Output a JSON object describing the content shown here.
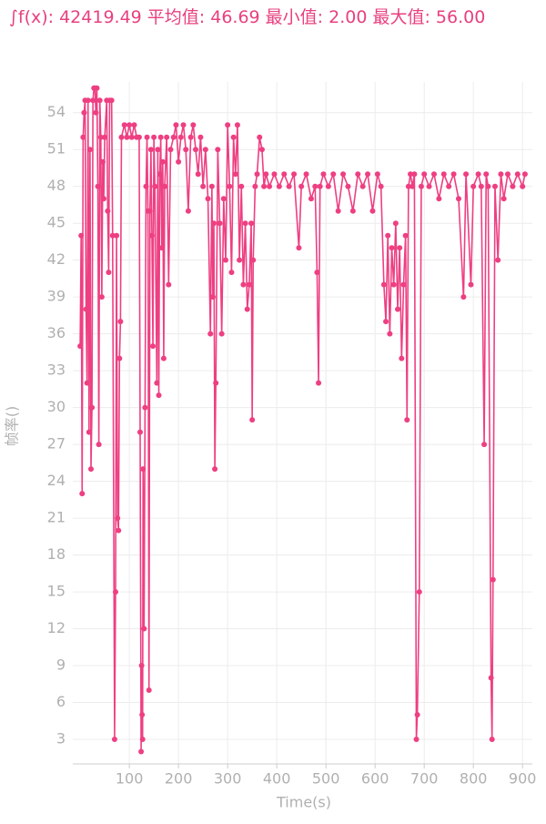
{
  "chart_data": {
    "type": "line",
    "title": "∫f(x): 42419.49 平均值: 46.69 最小值: 2.00 最大值: 56.00",
    "xlabel": "Time(s)",
    "ylabel": "帧率()",
    "color": "#ee3f82",
    "grid": true,
    "xlim": [
      -15,
      920
    ],
    "xticks": [
      100,
      200,
      300,
      400,
      500,
      600,
      700,
      800,
      900
    ],
    "ylim": [
      1,
      56.5
    ],
    "yticks": [
      3,
      6,
      9,
      12,
      15,
      18,
      21,
      24,
      27,
      30,
      33,
      36,
      39,
      42,
      45,
      48,
      51,
      54
    ],
    "x": [
      0,
      2,
      4,
      6,
      8,
      10,
      12,
      14,
      16,
      18,
      20,
      22,
      24,
      26,
      28,
      30,
      32,
      34,
      36,
      38,
      40,
      42,
      44,
      46,
      48,
      50,
      54,
      56,
      58,
      60,
      64,
      66,
      70,
      72,
      74,
      76,
      78,
      80,
      82,
      84,
      90,
      95,
      100,
      105,
      110,
      115,
      120,
      122,
      124,
      125,
      126,
      127,
      128,
      130,
      132,
      134,
      136,
      138,
      140,
      142,
      144,
      146,
      148,
      150,
      152,
      156,
      158,
      160,
      162,
      164,
      166,
      168,
      170,
      172,
      176,
      180,
      184,
      190,
      195,
      200,
      205,
      210,
      215,
      220,
      225,
      230,
      235,
      240,
      245,
      250,
      255,
      260,
      265,
      268,
      270,
      272,
      274,
      276,
      280,
      284,
      288,
      292,
      296,
      300,
      304,
      308,
      312,
      316,
      320,
      324,
      328,
      332,
      336,
      340,
      344,
      348,
      350,
      352,
      356,
      360,
      365,
      370,
      374,
      378,
      385,
      395,
      405,
      415,
      425,
      435,
      445,
      450,
      460,
      470,
      478,
      482,
      485,
      488,
      495,
      505,
      515,
      525,
      535,
      545,
      555,
      565,
      575,
      585,
      595,
      605,
      612,
      618,
      622,
      626,
      630,
      634,
      638,
      642,
      646,
      650,
      654,
      658,
      662,
      665,
      668,
      672,
      676,
      680,
      684,
      686,
      690,
      694,
      700,
      710,
      720,
      730,
      740,
      750,
      760,
      770,
      780,
      785,
      795,
      800,
      810,
      816,
      822,
      826,
      830,
      836,
      838,
      840,
      844,
      850,
      856,
      862,
      870,
      880,
      890,
      900,
      905
    ],
    "values": [
      35,
      44,
      23,
      52,
      54,
      55,
      38,
      32,
      55,
      28,
      51,
      25,
      30,
      55,
      56,
      56,
      54,
      56,
      48,
      27,
      55,
      52,
      39,
      50,
      47,
      52,
      55,
      46,
      41,
      55,
      55,
      44,
      3,
      15,
      44,
      21,
      20,
      34,
      37,
      52,
      53,
      52,
      53,
      52,
      53,
      52,
      52,
      28,
      2,
      9,
      5,
      3,
      25,
      12,
      30,
      48,
      52,
      46,
      7,
      46,
      51,
      44,
      35,
      52,
      48,
      32,
      51,
      31,
      49,
      52,
      43,
      50,
      34,
      48,
      52,
      40,
      51,
      52,
      53,
      50,
      52,
      53,
      51,
      46,
      52,
      53,
      51,
      49,
      52,
      48,
      51,
      47,
      36,
      48,
      39,
      45,
      25,
      32,
      51,
      45,
      36,
      47,
      42,
      53,
      48,
      41,
      52,
      49,
      53,
      42,
      48,
      40,
      45,
      38,
      40,
      45,
      29,
      42,
      48,
      49,
      52,
      51,
      48,
      49,
      48,
      49,
      48,
      49,
      48,
      49,
      43,
      48,
      49,
      47,
      48,
      41,
      32,
      48,
      49,
      48,
      49,
      46,
      49,
      48,
      46,
      49,
      48,
      49,
      46,
      49,
      48,
      40,
      37,
      44,
      36,
      43,
      40,
      45,
      38,
      43,
      34,
      40,
      44,
      29,
      48,
      49,
      48,
      49,
      3,
      5,
      15,
      48,
      49,
      48,
      49,
      47,
      49,
      48,
      49,
      47,
      39,
      49,
      40,
      48,
      49,
      48,
      27,
      49,
      48,
      8,
      3,
      16,
      48,
      42,
      49,
      47,
      49,
      48,
      49,
      48,
      49
    ]
  }
}
